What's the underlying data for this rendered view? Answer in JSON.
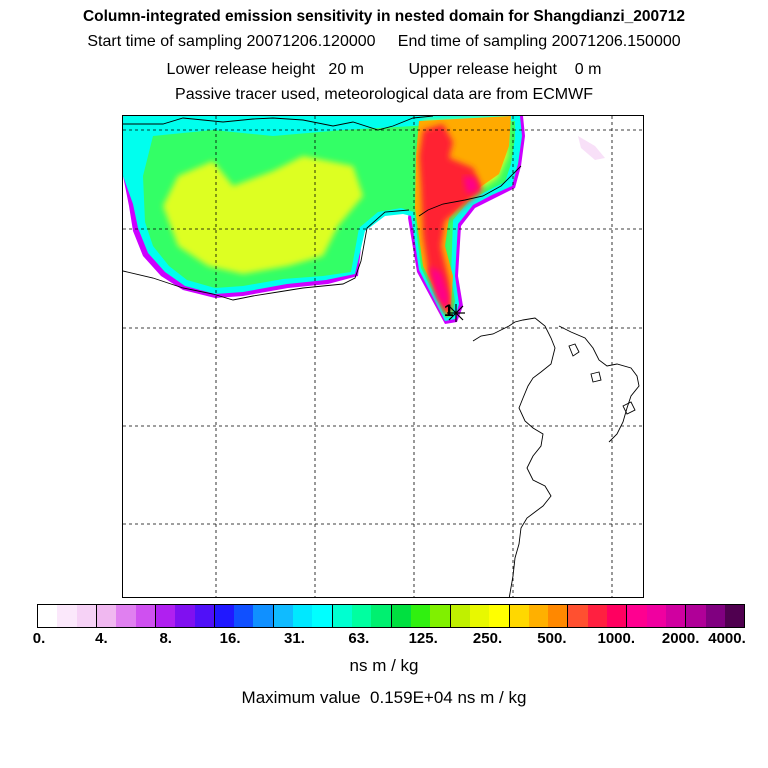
{
  "header": {
    "title": "Column-integrated emission sensitivity in nested domain for Shangdianzi_200712",
    "line1": "Start time of sampling 20071206.120000     End time of sampling 20071206.150000",
    "line2": "Lower release height   20 m          Upper release height    0 m",
    "line3": "Passive tracer used, meteorological data are from ECMWF"
  },
  "map": {
    "release_marker": "1",
    "plume_colors": {
      "outer": "#cc00ff",
      "cyan": "#00ffee",
      "green": "#33ff66",
      "yellow": "#ddff22",
      "orange": "#ffaa00",
      "red": "#ff2233",
      "magenta": "#ff0088"
    }
  },
  "colorbar": {
    "colors": [
      "#ffffff",
      "#fbe8fb",
      "#f6d2f6",
      "#f0b8f0",
      "#e080f0",
      "#cf50f0",
      "#b020f0",
      "#8010f0",
      "#5010f8",
      "#2018ff",
      "#1050ff",
      "#1090ff",
      "#10bbff",
      "#00e8ff",
      "#00ffff",
      "#00ffd0",
      "#00ffa0",
      "#00f070",
      "#00e040",
      "#30f010",
      "#80f000",
      "#c0f000",
      "#e8f800",
      "#ffff00",
      "#ffd800",
      "#ffb000",
      "#ff8800",
      "#ff5030",
      "#ff2040",
      "#ff0060",
      "#ff0090",
      "#f000a0",
      "#d000a0",
      "#b00098",
      "#800080",
      "#500050"
    ],
    "labels": [
      "0.",
      "4.",
      "8.",
      "16.",
      "31.",
      "63.",
      "125.",
      "250.",
      "500.",
      "1000.",
      "2000.",
      "4000."
    ]
  },
  "units": "ns m / kg",
  "max_value": "Maximum value  0.159E+04 ns m / kg"
}
